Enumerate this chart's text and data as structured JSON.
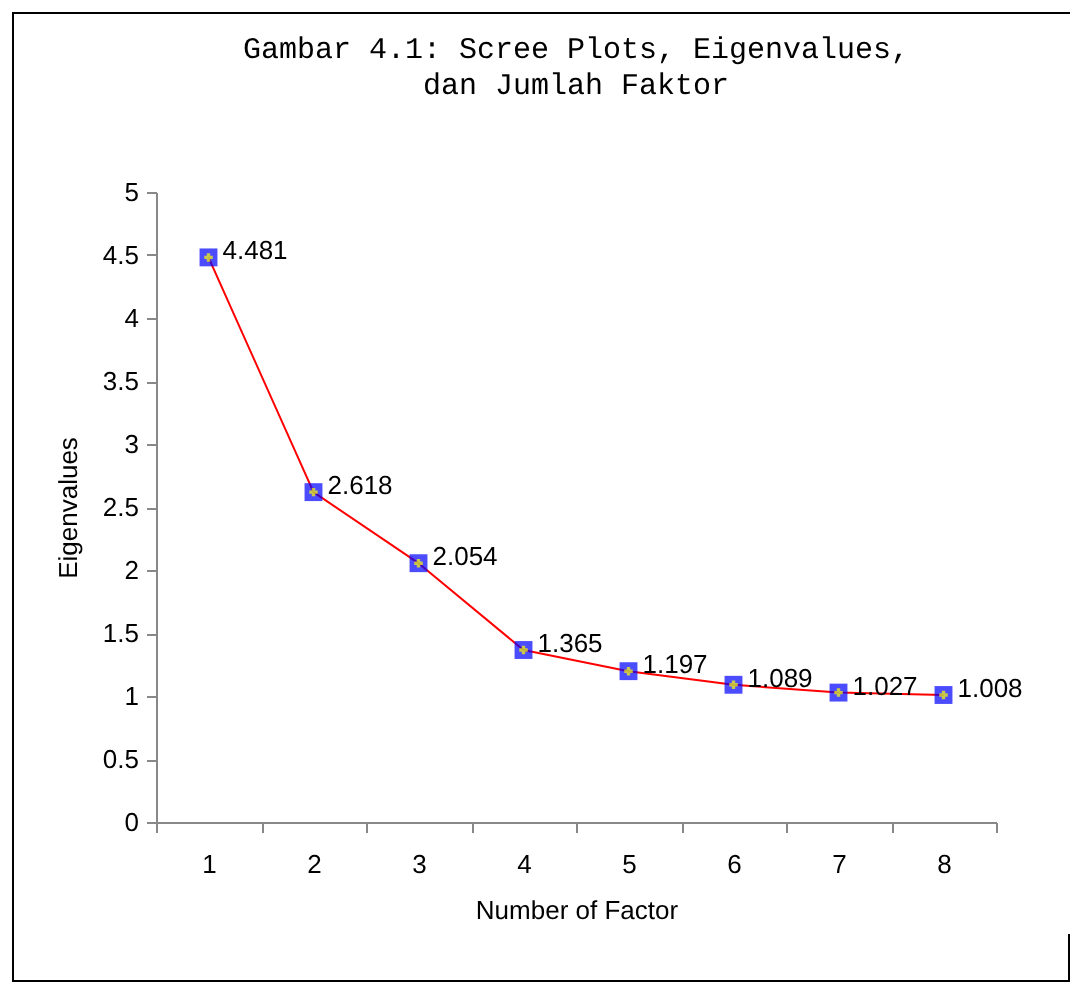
{
  "chart_data": {
    "type": "line",
    "title": "Gambar 4.1: Scree Plots, Eigenvalues,",
    "subtitle": "dan Jumlah Faktor",
    "xlabel": "Number of Factor",
    "ylabel": "Eigenvalues",
    "categories": [
      "1",
      "2",
      "3",
      "4",
      "5",
      "6",
      "7",
      "8"
    ],
    "series": [
      {
        "color": "#ff0000",
        "colors": [
          "#0000ff",
          "#0000ff",
          "#0000ff",
          "#0000ff",
          "#0000ff",
          "#0000ff",
          "#0000ff",
          "#0000ff"
        ],
        "values": [
          4.481,
          2.618,
          2.054,
          1.365,
          1.197,
          1.089,
          1.027,
          1.008
        ]
      }
    ],
    "ylim": [
      0,
      5
    ],
    "yticks": [
      0,
      0.5,
      1,
      1.5,
      2,
      2.5,
      3,
      3.5,
      4,
      4.5,
      5
    ],
    "grid": false,
    "marker": "square",
    "line_style": "solid",
    "data_labels": true
  }
}
